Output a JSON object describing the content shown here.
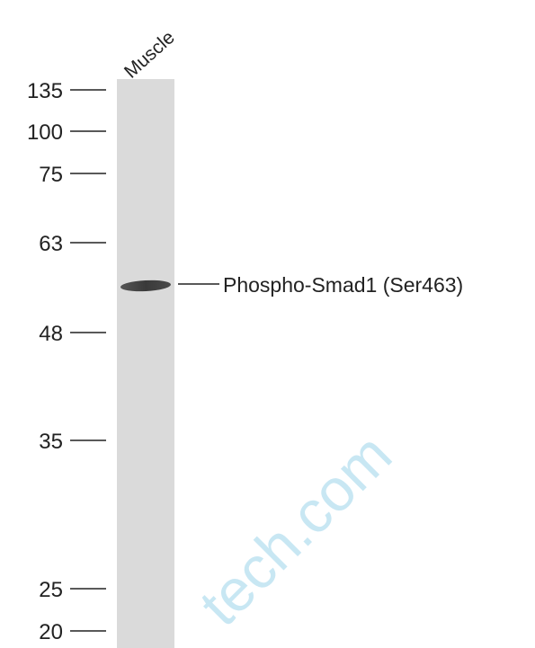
{
  "lane_label": "Muscle",
  "markers": [
    "135",
    "100",
    "75",
    "63",
    "48",
    "35",
    "25",
    "20"
  ],
  "band_label": "Phospho-Smad1 (Ser463)",
  "watermark": "tech.com"
}
